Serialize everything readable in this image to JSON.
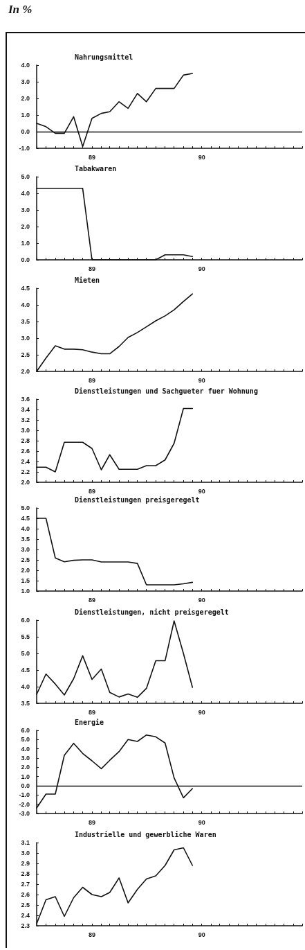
{
  "chart_data": [
    {
      "type": "line",
      "title": "Nahrungsmittel",
      "annotations": [
        "In %"
      ],
      "color": "#111111",
      "marker": "none",
      "line_style": "solid",
      "x": [
        "1988-07",
        "1988-08",
        "1988-09",
        "1988-10",
        "1988-11",
        "1988-12",
        "1989-01",
        "1989-02",
        "1989-03",
        "1989-04",
        "1989-05",
        "1989-06",
        "1989-07",
        "1989-08",
        "1989-09",
        "1989-10",
        "1989-11",
        "1989-12"
      ],
      "values": [
        0.5,
        0.3,
        -0.1,
        -0.1,
        0.9,
        -0.9,
        0.8,
        1.1,
        1.2,
        1.8,
        1.4,
        2.3,
        1.8,
        2.6,
        2.6,
        2.6,
        3.4,
        3.5
      ],
      "ylim": [
        -1,
        4
      ],
      "yticks": [
        {
          "value": -1,
          "label": "-1.0"
        },
        {
          "value": 0,
          "label": "0.0"
        },
        {
          "value": 1,
          "label": "1.0"
        },
        {
          "value": 2,
          "label": "2.0"
        },
        {
          "value": 3,
          "label": "3.0"
        },
        {
          "value": 4,
          "label": "4.0"
        }
      ],
      "ref_lines": [
        {
          "axis": "y",
          "value": 0,
          "label": null
        }
      ],
      "xlim": [
        "1988-07",
        "1990-12"
      ],
      "xticks": [
        {
          "value": "1988-07",
          "label": null
        },
        {
          "value": "1988-08",
          "label": null
        },
        {
          "value": "1988-09",
          "label": null
        },
        {
          "value": "1988-10",
          "label": null
        },
        {
          "value": "1988-11",
          "label": null
        },
        {
          "value": "1988-12",
          "label": null
        },
        {
          "value": "1989-01",
          "label": "89"
        },
        {
          "value": "1989-02",
          "label": null
        },
        {
          "value": "1989-03",
          "label": null
        },
        {
          "value": "1989-04",
          "label": null
        },
        {
          "value": "1989-05",
          "label": null
        },
        {
          "value": "1989-06",
          "label": null
        },
        {
          "value": "1989-07",
          "label": null
        },
        {
          "value": "1989-08",
          "label": null
        },
        {
          "value": "1989-09",
          "label": null
        },
        {
          "value": "1989-10",
          "label": null
        },
        {
          "value": "1989-11",
          "label": null
        },
        {
          "value": "1989-12",
          "label": null
        },
        {
          "value": "1990-01",
          "label": "90"
        },
        {
          "value": "1990-02",
          "label": null
        },
        {
          "value": "1990-03",
          "label": null
        },
        {
          "value": "1990-04",
          "label": null
        },
        {
          "value": "1990-05",
          "label": null
        },
        {
          "value": "1990-06",
          "label": null
        },
        {
          "value": "1990-07",
          "label": null
        },
        {
          "value": "1990-08",
          "label": null
        },
        {
          "value": "1990-09",
          "label": null
        },
        {
          "value": "1990-10",
          "label": null
        },
        {
          "value": "1990-11",
          "label": null
        },
        {
          "value": "1990-12",
          "label": null
        }
      ]
    },
    {
      "type": "line",
      "title": "Tabakwaren",
      "color": "#111111",
      "marker": "none",
      "line_style": "solid",
      "x": [
        "1988-07",
        "1988-08",
        "1988-09",
        "1988-10",
        "1988-11",
        "1988-12",
        "1989-01",
        "1989-02",
        "1989-03",
        "1989-04",
        "1989-05",
        "1989-06",
        "1989-07",
        "1989-08",
        "1989-09",
        "1989-10",
        "1989-11",
        "1989-12"
      ],
      "values": [
        4.3,
        4.3,
        4.3,
        4.3,
        4.3,
        4.3,
        0.0,
        0.0,
        0.0,
        0.0,
        0.0,
        0.0,
        0.0,
        0.0,
        0.3,
        0.3,
        0.3,
        0.2
      ],
      "ylim": [
        0,
        5
      ],
      "yticks": [
        {
          "value": 0,
          "label": "0.0"
        },
        {
          "value": 1,
          "label": "1.0"
        },
        {
          "value": 2,
          "label": "2.0"
        },
        {
          "value": 3,
          "label": "3.0"
        },
        {
          "value": 4,
          "label": "4.0"
        },
        {
          "value": 5,
          "label": "5.0"
        }
      ],
      "xlim": [
        "1988-07",
        "1990-12"
      ],
      "xticks": [
        {
          "value": "1988-07",
          "label": null
        },
        {
          "value": "1988-08",
          "label": null
        },
        {
          "value": "1988-09",
          "label": null
        },
        {
          "value": "1988-10",
          "label": null
        },
        {
          "value": "1988-11",
          "label": null
        },
        {
          "value": "1988-12",
          "label": null
        },
        {
          "value": "1989-01",
          "label": "89"
        },
        {
          "value": "1989-02",
          "label": null
        },
        {
          "value": "1989-03",
          "label": null
        },
        {
          "value": "1989-04",
          "label": null
        },
        {
          "value": "1989-05",
          "label": null
        },
        {
          "value": "1989-06",
          "label": null
        },
        {
          "value": "1989-07",
          "label": null
        },
        {
          "value": "1989-08",
          "label": null
        },
        {
          "value": "1989-09",
          "label": null
        },
        {
          "value": "1989-10",
          "label": null
        },
        {
          "value": "1989-11",
          "label": null
        },
        {
          "value": "1989-12",
          "label": null
        },
        {
          "value": "1990-01",
          "label": "90"
        },
        {
          "value": "1990-02",
          "label": null
        },
        {
          "value": "1990-03",
          "label": null
        },
        {
          "value": "1990-04",
          "label": null
        },
        {
          "value": "1990-05",
          "label": null
        },
        {
          "value": "1990-06",
          "label": null
        },
        {
          "value": "1990-07",
          "label": null
        },
        {
          "value": "1990-08",
          "label": null
        },
        {
          "value": "1990-09",
          "label": null
        },
        {
          "value": "1990-10",
          "label": null
        },
        {
          "value": "1990-11",
          "label": null
        },
        {
          "value": "1990-12",
          "label": null
        }
      ]
    },
    {
      "type": "line",
      "title": "Mieten",
      "color": "#111111",
      "marker": "none",
      "line_style": "solid",
      "x": [
        "1988-07",
        "1988-08",
        "1988-09",
        "1988-10",
        "1988-11",
        "1988-12",
        "1989-01",
        "1989-02",
        "1989-03",
        "1989-04",
        "1989-05",
        "1989-06",
        "1989-07",
        "1989-08",
        "1989-09",
        "1989-10",
        "1989-11",
        "1989-12"
      ],
      "values": [
        2.0,
        2.4,
        2.77,
        2.67,
        2.67,
        2.65,
        2.58,
        2.53,
        2.53,
        2.75,
        3.02,
        3.17,
        3.34,
        3.52,
        3.67,
        3.85,
        4.1,
        4.33
      ],
      "ylim": [
        2,
        4.5
      ],
      "yticks": [
        {
          "value": 2,
          "label": "2.0"
        },
        {
          "value": 2.5,
          "label": "2.5"
        },
        {
          "value": 3,
          "label": "3.0"
        },
        {
          "value": 3.5,
          "label": "3.5"
        },
        {
          "value": 4,
          "label": "4.0"
        },
        {
          "value": 4.5,
          "label": "4.5"
        }
      ],
      "xlim": [
        "1988-07",
        "1990-12"
      ],
      "xticks": [
        {
          "value": "1988-07",
          "label": null
        },
        {
          "value": "1988-08",
          "label": null
        },
        {
          "value": "1988-09",
          "label": null
        },
        {
          "value": "1988-10",
          "label": null
        },
        {
          "value": "1988-11",
          "label": null
        },
        {
          "value": "1988-12",
          "label": null
        },
        {
          "value": "1989-01",
          "label": "89"
        },
        {
          "value": "1989-02",
          "label": null
        },
        {
          "value": "1989-03",
          "label": null
        },
        {
          "value": "1989-04",
          "label": null
        },
        {
          "value": "1989-05",
          "label": null
        },
        {
          "value": "1989-06",
          "label": null
        },
        {
          "value": "1989-07",
          "label": null
        },
        {
          "value": "1989-08",
          "label": null
        },
        {
          "value": "1989-09",
          "label": null
        },
        {
          "value": "1989-10",
          "label": null
        },
        {
          "value": "1989-11",
          "label": null
        },
        {
          "value": "1989-12",
          "label": null
        },
        {
          "value": "1990-01",
          "label": "90"
        },
        {
          "value": "1990-02",
          "label": null
        },
        {
          "value": "1990-03",
          "label": null
        },
        {
          "value": "1990-04",
          "label": null
        },
        {
          "value": "1990-05",
          "label": null
        },
        {
          "value": "1990-06",
          "label": null
        },
        {
          "value": "1990-07",
          "label": null
        },
        {
          "value": "1990-08",
          "label": null
        },
        {
          "value": "1990-09",
          "label": null
        },
        {
          "value": "1990-10",
          "label": null
        },
        {
          "value": "1990-11",
          "label": null
        },
        {
          "value": "1990-12",
          "label": null
        }
      ]
    },
    {
      "type": "line",
      "title": "Dienstleistungen und Sachgueter fuer Wohnung",
      "color": "#111111",
      "marker": "none",
      "line_style": "solid",
      "x": [
        "1988-07",
        "1988-08",
        "1988-09",
        "1988-10",
        "1988-11",
        "1988-12",
        "1989-01",
        "1989-02",
        "1989-03",
        "1989-04",
        "1989-05",
        "1989-06",
        "1989-07",
        "1989-08",
        "1989-09",
        "1989-10",
        "1989-11",
        "1989-12"
      ],
      "values": [
        2.29,
        2.29,
        2.2,
        2.77,
        2.77,
        2.77,
        2.65,
        2.24,
        2.53,
        2.25,
        2.25,
        2.25,
        2.32,
        2.32,
        2.43,
        2.75,
        3.42,
        3.42
      ],
      "ylim": [
        2,
        3.6
      ],
      "yticks": [
        {
          "value": 2,
          "label": "2.0"
        },
        {
          "value": 2.2,
          "label": "2.2"
        },
        {
          "value": 2.4,
          "label": "2.4"
        },
        {
          "value": 2.6,
          "label": "2.6"
        },
        {
          "value": 2.8,
          "label": "2.8"
        },
        {
          "value": 3,
          "label": "3.0"
        },
        {
          "value": 3.2,
          "label": "3.2"
        },
        {
          "value": 3.4,
          "label": "3.4"
        },
        {
          "value": 3.6,
          "label": "3.6"
        }
      ],
      "xlim": [
        "1988-07",
        "1990-12"
      ],
      "xticks": [
        {
          "value": "1988-07",
          "label": null
        },
        {
          "value": "1988-08",
          "label": null
        },
        {
          "value": "1988-09",
          "label": null
        },
        {
          "value": "1988-10",
          "label": null
        },
        {
          "value": "1988-11",
          "label": null
        },
        {
          "value": "1988-12",
          "label": null
        },
        {
          "value": "1989-01",
          "label": "89"
        },
        {
          "value": "1989-02",
          "label": null
        },
        {
          "value": "1989-03",
          "label": null
        },
        {
          "value": "1989-04",
          "label": null
        },
        {
          "value": "1989-05",
          "label": null
        },
        {
          "value": "1989-06",
          "label": null
        },
        {
          "value": "1989-07",
          "label": null
        },
        {
          "value": "1989-08",
          "label": null
        },
        {
          "value": "1989-09",
          "label": null
        },
        {
          "value": "1989-10",
          "label": null
        },
        {
          "value": "1989-11",
          "label": null
        },
        {
          "value": "1989-12",
          "label": null
        },
        {
          "value": "1990-01",
          "label": "90"
        },
        {
          "value": "1990-02",
          "label": null
        },
        {
          "value": "1990-03",
          "label": null
        },
        {
          "value": "1990-04",
          "label": null
        },
        {
          "value": "1990-05",
          "label": null
        },
        {
          "value": "1990-06",
          "label": null
        },
        {
          "value": "1990-07",
          "label": null
        },
        {
          "value": "1990-08",
          "label": null
        },
        {
          "value": "1990-09",
          "label": null
        },
        {
          "value": "1990-10",
          "label": null
        },
        {
          "value": "1990-11",
          "label": null
        },
        {
          "value": "1990-12",
          "label": null
        }
      ]
    },
    {
      "type": "line",
      "title": "Dienstleistungen preisgeregelt",
      "color": "#111111",
      "marker": "none",
      "line_style": "solid",
      "x": [
        "1988-07",
        "1988-08",
        "1988-09",
        "1988-10",
        "1988-11",
        "1988-12",
        "1989-01",
        "1989-02",
        "1989-03",
        "1989-04",
        "1989-05",
        "1989-06",
        "1989-07",
        "1989-08",
        "1989-09",
        "1989-10",
        "1989-11",
        "1989-12"
      ],
      "values": [
        4.5,
        4.5,
        2.59,
        2.41,
        2.48,
        2.5,
        2.5,
        2.4,
        2.4,
        2.4,
        2.4,
        2.33,
        1.3,
        1.3,
        1.3,
        1.3,
        1.35,
        1.42
      ],
      "ylim": [
        1,
        5
      ],
      "yticks": [
        {
          "value": 1,
          "label": "1.0"
        },
        {
          "value": 1.5,
          "label": "1.5"
        },
        {
          "value": 2,
          "label": "2.0"
        },
        {
          "value": 2.5,
          "label": "2.5"
        },
        {
          "value": 3,
          "label": "3.0"
        },
        {
          "value": 3.5,
          "label": "3.5"
        },
        {
          "value": 4,
          "label": "4.0"
        },
        {
          "value": 4.5,
          "label": "4.5"
        },
        {
          "value": 5,
          "label": "5.0"
        }
      ],
      "xlim": [
        "1988-07",
        "1990-12"
      ],
      "xticks": [
        {
          "value": "1988-07",
          "label": null
        },
        {
          "value": "1988-08",
          "label": null
        },
        {
          "value": "1988-09",
          "label": null
        },
        {
          "value": "1988-10",
          "label": null
        },
        {
          "value": "1988-11",
          "label": null
        },
        {
          "value": "1988-12",
          "label": null
        },
        {
          "value": "1989-01",
          "label": "89"
        },
        {
          "value": "1989-02",
          "label": null
        },
        {
          "value": "1989-03",
          "label": null
        },
        {
          "value": "1989-04",
          "label": null
        },
        {
          "value": "1989-05",
          "label": null
        },
        {
          "value": "1989-06",
          "label": null
        },
        {
          "value": "1989-07",
          "label": null
        },
        {
          "value": "1989-08",
          "label": null
        },
        {
          "value": "1989-09",
          "label": null
        },
        {
          "value": "1989-10",
          "label": null
        },
        {
          "value": "1989-11",
          "label": null
        },
        {
          "value": "1989-12",
          "label": null
        },
        {
          "value": "1990-01",
          "label": "90"
        },
        {
          "value": "1990-02",
          "label": null
        },
        {
          "value": "1990-03",
          "label": null
        },
        {
          "value": "1990-04",
          "label": null
        },
        {
          "value": "1990-05",
          "label": null
        },
        {
          "value": "1990-06",
          "label": null
        },
        {
          "value": "1990-07",
          "label": null
        },
        {
          "value": "1990-08",
          "label": null
        },
        {
          "value": "1990-09",
          "label": null
        },
        {
          "value": "1990-10",
          "label": null
        },
        {
          "value": "1990-11",
          "label": null
        },
        {
          "value": "1990-12",
          "label": null
        }
      ]
    },
    {
      "type": "line",
      "title": "Dienstleistungen, nicht preisgeregelt",
      "color": "#111111",
      "marker": "none",
      "line_style": "solid",
      "x": [
        "1988-07",
        "1988-08",
        "1988-09",
        "1988-10",
        "1988-11",
        "1988-12",
        "1989-01",
        "1989-02",
        "1989-03",
        "1989-04",
        "1989-05",
        "1989-06",
        "1989-07",
        "1989-08",
        "1989-09",
        "1989-10",
        "1989-11",
        "1989-12"
      ],
      "values": [
        3.77,
        4.38,
        4.08,
        3.75,
        4.24,
        4.93,
        4.22,
        4.53,
        3.83,
        3.69,
        3.78,
        3.68,
        3.95,
        4.78,
        4.78,
        5.98,
        5.0,
        3.98
      ],
      "ylim": [
        3.5,
        6
      ],
      "yticks": [
        {
          "value": 3.5,
          "label": "3.5"
        },
        {
          "value": 4,
          "label": "4.0"
        },
        {
          "value": 4.5,
          "label": "4.5"
        },
        {
          "value": 5,
          "label": "5.0"
        },
        {
          "value": 5.5,
          "label": "5.5"
        },
        {
          "value": 6,
          "label": "6.0"
        }
      ],
      "xlim": [
        "1988-07",
        "1990-12"
      ],
      "xticks": [
        {
          "value": "1988-07",
          "label": null
        },
        {
          "value": "1988-08",
          "label": null
        },
        {
          "value": "1988-09",
          "label": null
        },
        {
          "value": "1988-10",
          "label": null
        },
        {
          "value": "1988-11",
          "label": null
        },
        {
          "value": "1988-12",
          "label": null
        },
        {
          "value": "1989-01",
          "label": "89"
        },
        {
          "value": "1989-02",
          "label": null
        },
        {
          "value": "1989-03",
          "label": null
        },
        {
          "value": "1989-04",
          "label": null
        },
        {
          "value": "1989-05",
          "label": null
        },
        {
          "value": "1989-06",
          "label": null
        },
        {
          "value": "1989-07",
          "label": null
        },
        {
          "value": "1989-08",
          "label": null
        },
        {
          "value": "1989-09",
          "label": null
        },
        {
          "value": "1989-10",
          "label": null
        },
        {
          "value": "1989-11",
          "label": null
        },
        {
          "value": "1989-12",
          "label": null
        },
        {
          "value": "1990-01",
          "label": "90"
        },
        {
          "value": "1990-02",
          "label": null
        },
        {
          "value": "1990-03",
          "label": null
        },
        {
          "value": "1990-04",
          "label": null
        },
        {
          "value": "1990-05",
          "label": null
        },
        {
          "value": "1990-06",
          "label": null
        },
        {
          "value": "1990-07",
          "label": null
        },
        {
          "value": "1990-08",
          "label": null
        },
        {
          "value": "1990-09",
          "label": null
        },
        {
          "value": "1990-10",
          "label": null
        },
        {
          "value": "1990-11",
          "label": null
        },
        {
          "value": "1990-12",
          "label": null
        }
      ]
    },
    {
      "type": "line",
      "title": "Energie",
      "color": "#111111",
      "marker": "none",
      "line_style": "solid",
      "x": [
        "1988-07",
        "1988-08",
        "1988-09",
        "1988-10",
        "1988-11",
        "1988-12",
        "1989-01",
        "1989-02",
        "1989-03",
        "1989-04",
        "1989-05",
        "1989-06",
        "1989-07",
        "1989-08",
        "1989-09",
        "1989-10",
        "1989-11",
        "1989-12"
      ],
      "values": [
        -2.4,
        -0.9,
        -0.9,
        3.3,
        4.6,
        3.5,
        2.7,
        1.85,
        2.76,
        3.7,
        5.0,
        4.8,
        5.5,
        5.3,
        4.63,
        0.85,
        -1.3,
        -0.3
      ],
      "ylim": [
        -3,
        6
      ],
      "yticks": [
        {
          "value": -3,
          "label": "-3.0"
        },
        {
          "value": -2,
          "label": "-2.0"
        },
        {
          "value": -1,
          "label": "-1.0"
        },
        {
          "value": 0,
          "label": "0.0"
        },
        {
          "value": 1,
          "label": "1.0"
        },
        {
          "value": 2,
          "label": "2.0"
        },
        {
          "value": 3,
          "label": "3.0"
        },
        {
          "value": 4,
          "label": "4.0"
        },
        {
          "value": 5,
          "label": "5.0"
        },
        {
          "value": 6,
          "label": "6.0"
        }
      ],
      "ref_lines": [
        {
          "axis": "y",
          "value": 0,
          "label": null
        }
      ],
      "xlim": [
        "1988-07",
        "1990-12"
      ],
      "xticks": [
        {
          "value": "1988-07",
          "label": null
        },
        {
          "value": "1988-08",
          "label": null
        },
        {
          "value": "1988-09",
          "label": null
        },
        {
          "value": "1988-10",
          "label": null
        },
        {
          "value": "1988-11",
          "label": null
        },
        {
          "value": "1988-12",
          "label": null
        },
        {
          "value": "1989-01",
          "label": "89"
        },
        {
          "value": "1989-02",
          "label": null
        },
        {
          "value": "1989-03",
          "label": null
        },
        {
          "value": "1989-04",
          "label": null
        },
        {
          "value": "1989-05",
          "label": null
        },
        {
          "value": "1989-06",
          "label": null
        },
        {
          "value": "1989-07",
          "label": null
        },
        {
          "value": "1989-08",
          "label": null
        },
        {
          "value": "1989-09",
          "label": null
        },
        {
          "value": "1989-10",
          "label": null
        },
        {
          "value": "1989-11",
          "label": null
        },
        {
          "value": "1989-12",
          "label": null
        },
        {
          "value": "1990-01",
          "label": "90"
        },
        {
          "value": "1990-02",
          "label": null
        },
        {
          "value": "1990-03",
          "label": null
        },
        {
          "value": "1990-04",
          "label": null
        },
        {
          "value": "1990-05",
          "label": null
        },
        {
          "value": "1990-06",
          "label": null
        },
        {
          "value": "1990-07",
          "label": null
        },
        {
          "value": "1990-08",
          "label": null
        },
        {
          "value": "1990-09",
          "label": null
        },
        {
          "value": "1990-10",
          "label": null
        },
        {
          "value": "1990-11",
          "label": null
        },
        {
          "value": "1990-12",
          "label": null
        }
      ]
    },
    {
      "type": "line",
      "title": "Industrielle und gewerbliche Waren",
      "color": "#111111",
      "marker": "none",
      "line_style": "solid",
      "x": [
        "1988-07",
        "1988-08",
        "1988-09",
        "1988-10",
        "1988-11",
        "1988-12",
        "1989-01",
        "1989-02",
        "1989-03",
        "1989-04",
        "1989-05",
        "1989-06",
        "1989-07",
        "1989-08",
        "1989-09",
        "1989-10",
        "1989-11",
        "1989-12"
      ],
      "values": [
        2.32,
        2.55,
        2.58,
        2.39,
        2.57,
        2.67,
        2.6,
        2.58,
        2.62,
        2.76,
        2.52,
        2.65,
        2.75,
        2.78,
        2.88,
        3.03,
        3.05,
        2.88
      ],
      "ylim": [
        2.3,
        3.1
      ],
      "yticks": [
        {
          "value": 2.3,
          "label": "2.3"
        },
        {
          "value": 2.4,
          "label": "2.4"
        },
        {
          "value": 2.5,
          "label": "2.5"
        },
        {
          "value": 2.6,
          "label": "2.6"
        },
        {
          "value": 2.7,
          "label": "2.7"
        },
        {
          "value": 2.8,
          "label": "2.8"
        },
        {
          "value": 2.9,
          "label": "2.9"
        },
        {
          "value": 3,
          "label": "3.0"
        },
        {
          "value": 3.1,
          "label": "3.1"
        }
      ],
      "xlim": [
        "1988-07",
        "1990-12"
      ],
      "xticks": [
        {
          "value": "1988-07",
          "label": null
        },
        {
          "value": "1988-08",
          "label": null
        },
        {
          "value": "1988-09",
          "label": null
        },
        {
          "value": "1988-10",
          "label": null
        },
        {
          "value": "1988-11",
          "label": null
        },
        {
          "value": "1988-12",
          "label": null
        },
        {
          "value": "1989-01",
          "label": "89"
        },
        {
          "value": "1989-02",
          "label": null
        },
        {
          "value": "1989-03",
          "label": null
        },
        {
          "value": "1989-04",
          "label": null
        },
        {
          "value": "1989-05",
          "label": null
        },
        {
          "value": "1989-06",
          "label": null
        },
        {
          "value": "1989-07",
          "label": null
        },
        {
          "value": "1989-08",
          "label": null
        },
        {
          "value": "1989-09",
          "label": null
        },
        {
          "value": "1989-10",
          "label": null
        },
        {
          "value": "1989-11",
          "label": null
        },
        {
          "value": "1989-12",
          "label": null
        },
        {
          "value": "1990-01",
          "label": "90"
        },
        {
          "value": "1990-02",
          "label": null
        },
        {
          "value": "1990-03",
          "label": null
        },
        {
          "value": "1990-04",
          "label": null
        },
        {
          "value": "1990-05",
          "label": null
        },
        {
          "value": "1990-06",
          "label": null
        },
        {
          "value": "1990-07",
          "label": null
        },
        {
          "value": "1990-08",
          "label": null
        },
        {
          "value": "1990-09",
          "label": null
        },
        {
          "value": "1990-10",
          "label": null
        },
        {
          "value": "1990-11",
          "label": null
        },
        {
          "value": "1990-12",
          "label": null
        }
      ]
    }
  ]
}
